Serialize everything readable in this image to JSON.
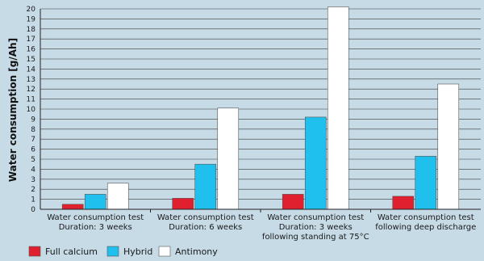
{
  "chart_data": {
    "type": "bar",
    "ylabel": "Water consumption [g/Ah]",
    "ylim": [
      0,
      20
    ],
    "yticks": [
      0,
      1,
      2,
      3,
      4,
      5,
      6,
      7,
      8,
      9,
      10,
      11,
      12,
      13,
      14,
      15,
      16,
      17,
      18,
      19,
      20
    ],
    "grid": true,
    "legend_position": "bottom-left",
    "categories": [
      [
        "Water consumption test",
        "Duration: 3 weeks"
      ],
      [
        "Water consumption test",
        "Duration: 6 weeks"
      ],
      [
        "Water consumption test",
        "Duration: 3 weeks",
        "following standing at 75°C"
      ],
      [
        "Water consumption test",
        "following deep discharge"
      ]
    ],
    "series": [
      {
        "name": "Full calcium",
        "color": "#e0202e",
        "values": [
          0.5,
          1.1,
          1.5,
          1.3
        ]
      },
      {
        "name": "Hybrid",
        "color": "#20c0ee",
        "values": [
          1.5,
          4.5,
          9.2,
          5.3
        ]
      },
      {
        "name": "Antimony",
        "color": "#ffffff",
        "values": [
          2.6,
          10.1,
          20.2,
          12.5
        ]
      }
    ]
  }
}
